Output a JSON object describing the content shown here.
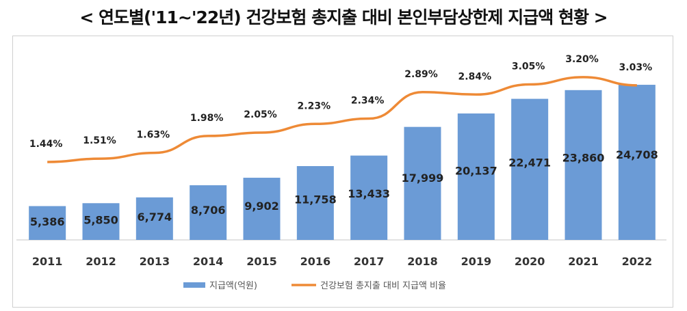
{
  "title": "< 연도별('11~'22년) 건강보험 총지출 대비 본인부담상한제 지급액 현황 >",
  "colors": {
    "bar": "#6b9bd6",
    "line": "#ee8a36",
    "axis": "#d9d9d9",
    "text": "#222222"
  },
  "chart_data": {
    "type": "bar",
    "title": "연도별('11~'22년) 건강보험 총지출 대비 본인부담상한제 지급액 현황",
    "categories": [
      "2011",
      "2012",
      "2013",
      "2014",
      "2015",
      "2016",
      "2017",
      "2018",
      "2019",
      "2020",
      "2021",
      "2022"
    ],
    "series": [
      {
        "name": "지급액(억원)",
        "type": "bar",
        "axis": "left",
        "values": [
          5386,
          5850,
          6774,
          8706,
          9902,
          11758,
          13433,
          17999,
          20137,
          22471,
          23860,
          24708
        ],
        "labels": [
          "5,386",
          "5,850",
          "6,774",
          "8,706",
          "9,902",
          "11,758",
          "13,433",
          "17,999",
          "20,137",
          "22,471",
          "23,860",
          "24,708"
        ]
      },
      {
        "name": "건강보험 총지출 대비 지급액 비율",
        "type": "line",
        "axis": "right",
        "values": [
          1.44,
          1.51,
          1.63,
          1.98,
          2.05,
          2.23,
          2.34,
          2.89,
          2.84,
          3.05,
          3.2,
          3.03
        ],
        "labels": [
          "1.44%",
          "1.51%",
          "1.63%",
          "1.98%",
          "2.05%",
          "2.23%",
          "2.34%",
          "2.89%",
          "2.84%",
          "3.05%",
          "3.20%",
          "3.03%"
        ]
      }
    ],
    "ylim_left": [
      0,
      30000
    ],
    "ylim_right": [
      0.5,
      3.5
    ],
    "legend": "bottom",
    "grid": false
  }
}
